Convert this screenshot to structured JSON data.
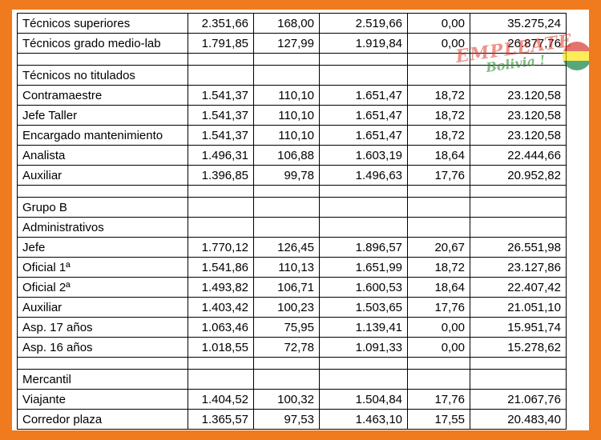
{
  "rows": [
    {
      "label": "Técnicos superiores",
      "v1": "2.351,66",
      "v2": "168,00",
      "v3": "2.519,66",
      "v4": "0,00",
      "v5": "35.275,24"
    },
    {
      "label": "Técnicos grado medio-lab",
      "v1": "1.791,85",
      "v2": "127,99",
      "v3": "1.919,84",
      "v4": "0,00",
      "v5": "26.877,76"
    },
    {
      "blank": true
    },
    {
      "label": "Técnicos no titulados",
      "v1": "",
      "v2": "",
      "v3": "",
      "v4": "",
      "v5": ""
    },
    {
      "label": "Contramaestre",
      "v1": "1.541,37",
      "v2": "110,10",
      "v3": "1.651,47",
      "v4": "18,72",
      "v5": "23.120,58"
    },
    {
      "label": "Jefe Taller",
      "v1": "1.541,37",
      "v2": "110,10",
      "v3": "1.651,47",
      "v4": "18,72",
      "v5": "23.120,58"
    },
    {
      "label": "Encargado mantenimiento",
      "v1": "1.541,37",
      "v2": "110,10",
      "v3": "1.651,47",
      "v4": "18,72",
      "v5": "23.120,58"
    },
    {
      "label": "Analista",
      "v1": "1.496,31",
      "v2": "106,88",
      "v3": "1.603,19",
      "v4": "18,64",
      "v5": "22.444,66"
    },
    {
      "label": "Auxiliar",
      "v1": "1.396,85",
      "v2": "99,78",
      "v3": "1.496,63",
      "v4": "17,76",
      "v5": "20.952,82"
    },
    {
      "blank": true
    },
    {
      "label": "Grupo B",
      "v1": "",
      "v2": "",
      "v3": "",
      "v4": "",
      "v5": ""
    },
    {
      "label": "Administrativos",
      "v1": "",
      "v2": "",
      "v3": "",
      "v4": "",
      "v5": ""
    },
    {
      "label": "Jefe",
      "v1": "1.770,12",
      "v2": "126,45",
      "v3": "1.896,57",
      "v4": "20,67",
      "v5": "26.551,98"
    },
    {
      "label": "Oficial 1ª",
      "v1": "1.541,86",
      "v2": "110,13",
      "v3": "1.651,99",
      "v4": "18,72",
      "v5": "23.127,86"
    },
    {
      "label": "Oficial 2ª",
      "v1": "1.493,82",
      "v2": "106,71",
      "v3": "1.600,53",
      "v4": "18,64",
      "v5": "22.407,42"
    },
    {
      "label": "Auxiliar",
      "v1": "1.403,42",
      "v2": "100,23",
      "v3": "1.503,65",
      "v4": "17,76",
      "v5": "21.051,10"
    },
    {
      "label": "Asp. 17 años",
      "v1": "1.063,46",
      "v2": "75,95",
      "v3": "1.139,41",
      "v4": "0,00",
      "v5": "15.951,74"
    },
    {
      "label": "Asp. 16 años",
      "v1": "1.018,55",
      "v2": "72,78",
      "v3": "1.091,33",
      "v4": "0,00",
      "v5": "15.278,62"
    },
    {
      "blank": true
    },
    {
      "label": "Mercantil",
      "v1": "",
      "v2": "",
      "v3": "",
      "v4": "",
      "v5": ""
    },
    {
      "label": "Viajante",
      "v1": "1.404,52",
      "v2": "100,32",
      "v3": "1.504,84",
      "v4": "17,76",
      "v5": "21.067,76"
    },
    {
      "label": "Corredor plaza",
      "v1": "1.365,57",
      "v2": "97,53",
      "v3": "1.463,10",
      "v4": "17,55",
      "v5": "20.483,40"
    }
  ],
  "watermark": {
    "line1": "EMPLEATE",
    "line2": "Bolivia !",
    "flag_colors": [
      "#d52b1e",
      "#f9e300",
      "#007934"
    ]
  },
  "colors": {
    "frame": "#f07a1e",
    "page": "#ffffff"
  }
}
